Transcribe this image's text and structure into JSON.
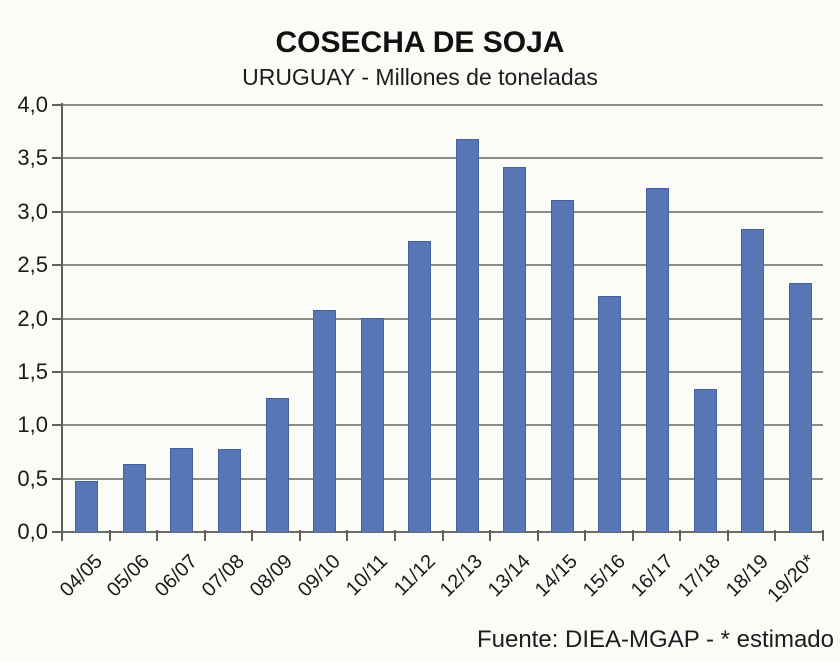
{
  "chart_data": {
    "type": "bar",
    "title": "COSECHA DE SOJA",
    "subtitle": "URUGUAY - Millones de toneladas",
    "footer": "Fuente: DIEA-MGAP  - * estimado",
    "categories": [
      "04/05",
      "05/06",
      "06/07",
      "07/08",
      "08/09",
      "09/10",
      "10/11",
      "11/12",
      "12/13",
      "13/14",
      "14/15",
      "15/16",
      "16/17",
      "17/18",
      "18/19",
      "19/20*"
    ],
    "values": [
      0.47,
      0.63,
      0.78,
      0.77,
      1.25,
      2.07,
      2.0,
      2.72,
      3.67,
      3.41,
      3.1,
      2.2,
      3.21,
      1.33,
      2.83,
      2.32
    ],
    "xlabel": "",
    "ylabel": "",
    "ylim": [
      0,
      4.0
    ],
    "ytick_step": 0.5,
    "ytick_labels": [
      "0,0",
      "0,5",
      "1,0",
      "1,5",
      "2,0",
      "2,5",
      "3,0",
      "3,5",
      "4,0"
    ],
    "grid": true,
    "legend": "none",
    "bar_color": "#5676B6",
    "bar_border_color": "#47619C",
    "gridline_color": "#8C8C8C",
    "axis_color": "#5F5F5F",
    "background_color": "#FBFBF8",
    "decimal_separator": "comma",
    "x_label_rotation_deg": -45
  }
}
